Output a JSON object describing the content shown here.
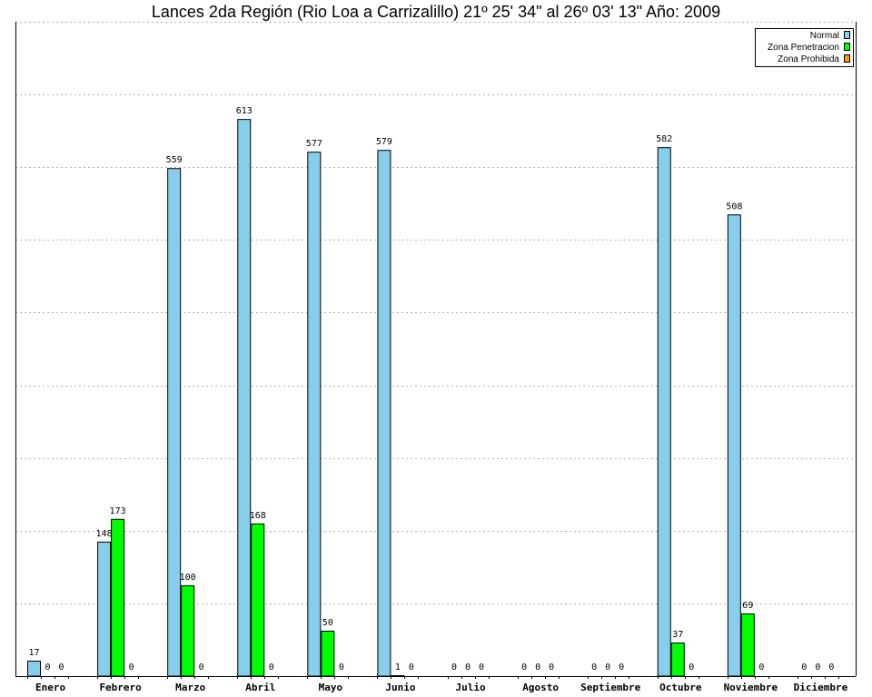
{
  "chart_data": {
    "type": "bar",
    "title": "Lances 2da Región (Rio Loa a Carrizalillo) 21º 25' 34\" al 26º 03' 13\" Año: 2009",
    "xlabel": "",
    "ylabel": "",
    "ylim": [
      0,
      720
    ],
    "grid": true,
    "legend_position": "top-right",
    "categories": [
      "Enero",
      "Febrero",
      "Marzo",
      "Abril",
      "Mayo",
      "Junio",
      "Julio",
      "Agosto",
      "Septiembre",
      "Octubre",
      "Noviembre",
      "Diciembre"
    ],
    "series": [
      {
        "name": "Normal",
        "color": "#87ceeb",
        "values": [
          17,
          148,
          559,
          613,
          577,
          579,
          0,
          0,
          0,
          582,
          508,
          0
        ]
      },
      {
        "name": "Zona Penetracion",
        "color": "#00ff00",
        "values": [
          0,
          173,
          100,
          168,
          50,
          1,
          0,
          0,
          0,
          37,
          69,
          0
        ]
      },
      {
        "name": "Zona Prohibida",
        "color": "#ff9900",
        "values": [
          0,
          0,
          0,
          0,
          0,
          0,
          0,
          0,
          0,
          0,
          0,
          0
        ]
      }
    ]
  }
}
